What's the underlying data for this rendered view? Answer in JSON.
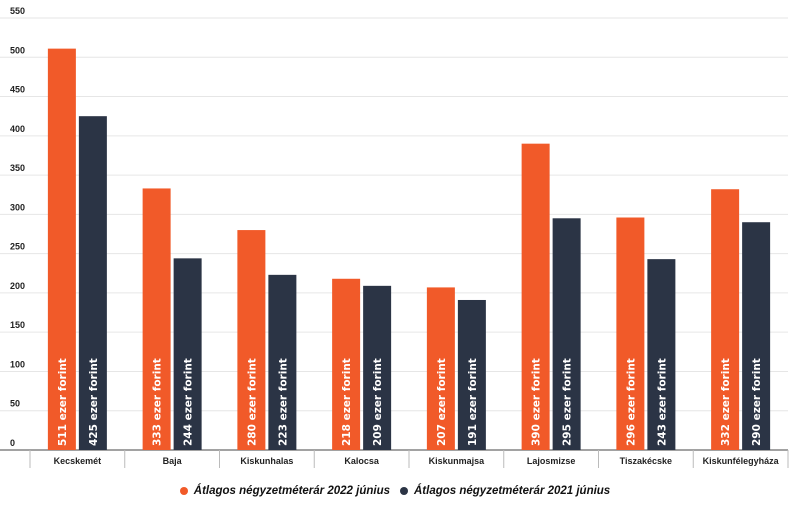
{
  "chart_data": {
    "type": "bar",
    "categories": [
      "Kecskemét",
      "Baja",
      "Kiskunhalas",
      "Kalocsa",
      "Kiskunmajsa",
      "Lajosmizse",
      "Tiszakécske",
      "Kiskunfélegyháza"
    ],
    "series": [
      {
        "name": "Átlagos négyzetméterár 2022 június",
        "color": "#f15a29",
        "values": [
          511,
          333,
          280,
          218,
          207,
          390,
          296,
          332
        ],
        "data_labels": [
          "511 ezer forint",
          "333 ezer forint",
          "280 ezer forint",
          "218 ezer forint",
          "207 ezer forint",
          "390 ezer forint",
          "296 ezer forint",
          "332 ezer forint"
        ]
      },
      {
        "name": "Átlagos négyzetméterár 2021 június",
        "color": "#2b3445",
        "values": [
          425,
          244,
          223,
          209,
          191,
          295,
          243,
          290
        ],
        "data_labels": [
          "425 ezer forint",
          "244 ezer forint",
          "223 ezer forint",
          "209 ezer forint",
          "191 ezer forint",
          "295 ezer forint",
          "243 ezer forint",
          "290 ezer forint"
        ]
      }
    ],
    "ylim": [
      0,
      550
    ],
    "yticks": [
      0,
      50,
      100,
      150,
      200,
      250,
      300,
      350,
      400,
      450,
      500,
      550
    ],
    "grid": true,
    "legend_position": "bottom",
    "title": "",
    "xlabel": "",
    "ylabel": ""
  }
}
